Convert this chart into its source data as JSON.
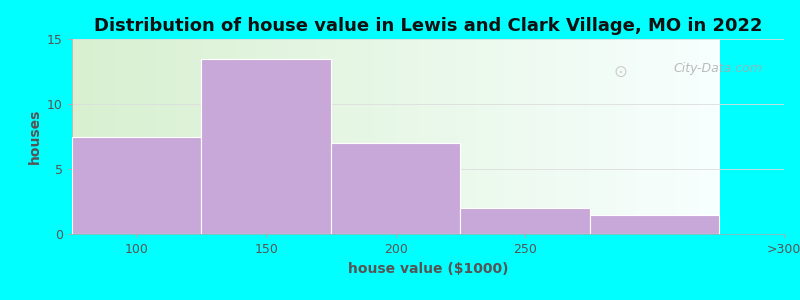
{
  "title": "Distribution of house value in Lewis and Clark Village, MO in 2022",
  "xlabel": "house value ($1000)",
  "ylabel": "houses",
  "categories": [
    "100",
    "150",
    "200",
    "250",
    ">300"
  ],
  "bin_edges": [
    75,
    125,
    175,
    225,
    275,
    325
  ],
  "values": [
    7.5,
    13.5,
    7.0,
    2.0,
    1.5
  ],
  "bar_color": "#C8A8D8",
  "bar_edgecolor": "#FFFFFF",
  "ylim": [
    0,
    15
  ],
  "yticks": [
    0,
    5,
    10,
    15
  ],
  "background_color": "#00FFFF",
  "plot_bg_color_left": "#D8F0D0",
  "plot_bg_color_right": "#F0F8FF",
  "title_fontsize": 13,
  "axis_label_fontsize": 10,
  "tick_fontsize": 9,
  "watermark_text": "City-Data.com",
  "tick_label_positions": [
    100,
    150,
    200,
    250,
    350
  ],
  "tick_label_names": [
    "100",
    "150",
    "200",
    "250",
    ">300"
  ]
}
